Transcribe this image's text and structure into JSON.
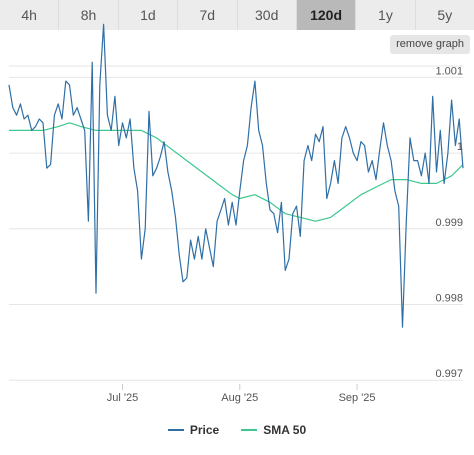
{
  "tabs": [
    {
      "label": "4h",
      "active": false
    },
    {
      "label": "8h",
      "active": false
    },
    {
      "label": "1d",
      "active": false
    },
    {
      "label": "7d",
      "active": false
    },
    {
      "label": "30d",
      "active": false
    },
    {
      "label": "120d",
      "active": true
    },
    {
      "label": "1y",
      "active": false
    },
    {
      "label": "5y",
      "active": false
    }
  ],
  "remove_graph_label": "remove graph",
  "colors": {
    "price": "#2f6fa6",
    "sma": "#3cc88e",
    "grid": "#e6e6e6"
  },
  "chart_data": {
    "type": "line",
    "title": "",
    "xlabel": "",
    "ylabel": "",
    "ylim": [
      0.99695,
      1.00115
    ],
    "x_ticks": [
      {
        "label": "Jul '25",
        "x": 39
      },
      {
        "label": "Aug '25",
        "x": 70
      },
      {
        "label": "Sep '25",
        "x": 101
      }
    ],
    "y_ticks": [
      {
        "label": "1.001",
        "value": 1.001
      },
      {
        "label": "1",
        "value": 1.0
      },
      {
        "label": "0.999",
        "value": 0.999
      },
      {
        "label": "0.998",
        "value": 0.998
      },
      {
        "label": "0.997",
        "value": 0.997
      }
    ],
    "x_range": [
      9,
      129
    ],
    "series": [
      {
        "name": "Price",
        "color": "#2f6fa6",
        "points": [
          [
            9,
            1.0009
          ],
          [
            10,
            1.0006
          ],
          [
            11,
            1.0005
          ],
          [
            12,
            1.00065
          ],
          [
            13,
            1.00045
          ],
          [
            14,
            1.0005
          ],
          [
            15,
            1.0003
          ],
          [
            16,
            1.00035
          ],
          [
            17,
            1.00045
          ],
          [
            18,
            1.0004
          ],
          [
            19,
            0.9998
          ],
          [
            20,
            0.99985
          ],
          [
            21,
            1.0005
          ],
          [
            22,
            1.00065
          ],
          [
            23,
            1.00045
          ],
          [
            24,
            1.00095
          ],
          [
            25,
            1.0009
          ],
          [
            26,
            1.0005
          ],
          [
            27,
            1.0006
          ],
          [
            28,
            1.00045
          ],
          [
            29,
            1.0003
          ],
          [
            30,
            0.9991
          ],
          [
            31,
            1.0012
          ],
          [
            32,
            0.99815
          ],
          [
            33,
            1.0009
          ],
          [
            34,
            1.0017
          ],
          [
            35,
            1.0005
          ],
          [
            36,
            1.0003
          ],
          [
            37,
            1.00075
          ],
          [
            38,
            1.0001
          ],
          [
            39,
            1.0004
          ],
          [
            40,
            1.0002
          ],
          [
            41,
            1.00045
          ],
          [
            42,
            0.9998
          ],
          [
            43,
            0.9995
          ],
          [
            44,
            0.9986
          ],
          [
            45,
            0.999
          ],
          [
            46,
            1.00055
          ],
          [
            47,
            0.9997
          ],
          [
            48,
            0.9998
          ],
          [
            49,
            0.99995
          ],
          [
            50,
            1.00015
          ],
          [
            51,
            0.99975
          ],
          [
            52,
            0.9995
          ],
          [
            53,
            0.99915
          ],
          [
            54,
            0.99865
          ],
          [
            55,
            0.9983
          ],
          [
            56,
            0.99835
          ],
          [
            57,
            0.99885
          ],
          [
            58,
            0.9986
          ],
          [
            59,
            0.9989
          ],
          [
            60,
            0.9986
          ],
          [
            61,
            0.999
          ],
          [
            62,
            0.99875
          ],
          [
            63,
            0.9985
          ],
          [
            64,
            0.9991
          ],
          [
            65,
            0.99925
          ],
          [
            66,
            0.9994
          ],
          [
            67,
            0.99905
          ],
          [
            68,
            0.99935
          ],
          [
            69,
            0.99905
          ],
          [
            70,
            0.9995
          ],
          [
            71,
            0.9999
          ],
          [
            72,
            1.0001
          ],
          [
            73,
            1.0006
          ],
          [
            74,
            1.00095
          ],
          [
            75,
            1.0003
          ],
          [
            76,
            1.0001
          ],
          [
            77,
            0.9996
          ],
          [
            78,
            0.99925
          ],
          [
            79,
            0.9992
          ],
          [
            80,
            0.99895
          ],
          [
            81,
            0.99935
          ],
          [
            82,
            0.99845
          ],
          [
            83,
            0.9986
          ],
          [
            84,
            0.9992
          ],
          [
            85,
            0.9993
          ],
          [
            86,
            0.9989
          ],
          [
            87,
            0.9999
          ],
          [
            88,
            1.0001
          ],
          [
            89,
            0.9999
          ],
          [
            90,
            1.00025
          ],
          [
            91,
            1.00015
          ],
          [
            92,
            1.00035
          ],
          [
            93,
            0.9994
          ],
          [
            94,
            0.9996
          ],
          [
            95,
            0.9999
          ],
          [
            96,
            0.9996
          ],
          [
            97,
            1.0002
          ],
          [
            98,
            1.00035
          ],
          [
            99,
            1.0002
          ],
          [
            100,
            1.0
          ],
          [
            101,
            0.9999
          ],
          [
            102,
            1.00015
          ],
          [
            103,
            1.0001
          ],
          [
            104,
            0.99975
          ],
          [
            105,
            0.9999
          ],
          [
            106,
            0.99965
          ],
          [
            107,
            1.00005
          ],
          [
            108,
            1.0004
          ],
          [
            109,
            1.0001
          ],
          [
            110,
            0.9999
          ],
          [
            111,
            0.9995
          ],
          [
            112,
            0.9993
          ],
          [
            113,
            0.9977
          ],
          [
            114,
            0.9991
          ],
          [
            115,
            1.0002
          ],
          [
            116,
            0.9999
          ],
          [
            117,
            0.9999
          ],
          [
            118,
            0.9997
          ],
          [
            119,
            1.0
          ],
          [
            120,
            0.9996
          ],
          [
            121,
            1.00075
          ],
          [
            122,
            0.99975
          ],
          [
            123,
            1.0003
          ],
          [
            124,
            0.9996
          ],
          [
            125,
            1.0
          ],
          [
            126,
            1.0007
          ],
          [
            127,
            1.0001
          ],
          [
            128,
            1.00045
          ],
          [
            129,
            0.9998
          ]
        ]
      },
      {
        "name": "SMA 50",
        "color": "#3cc88e",
        "points": [
          [
            9,
            1.0003
          ],
          [
            14,
            1.0003
          ],
          [
            18,
            1.0003
          ],
          [
            22,
            1.00035
          ],
          [
            25,
            1.0004
          ],
          [
            28,
            1.00035
          ],
          [
            32,
            1.0003
          ],
          [
            36,
            1.0003
          ],
          [
            40,
            1.0003
          ],
          [
            44,
            1.0003
          ],
          [
            48,
            1.0002
          ],
          [
            52,
            1.00005
          ],
          [
            56,
            0.9999
          ],
          [
            60,
            0.99975
          ],
          [
            64,
            0.9996
          ],
          [
            68,
            0.99945
          ],
          [
            70,
            0.9994
          ],
          [
            74,
            0.99945
          ],
          [
            78,
            0.99935
          ],
          [
            82,
            0.9992
          ],
          [
            86,
            0.99915
          ],
          [
            90,
            0.9991
          ],
          [
            94,
            0.99915
          ],
          [
            98,
            0.9993
          ],
          [
            102,
            0.99945
          ],
          [
            106,
            0.99955
          ],
          [
            110,
            0.99965
          ],
          [
            114,
            0.99965
          ],
          [
            118,
            0.9996
          ],
          [
            122,
            0.9996
          ],
          [
            126,
            0.9997
          ],
          [
            129,
            0.99985
          ]
        ]
      }
    ],
    "legend": "bottom-center"
  }
}
